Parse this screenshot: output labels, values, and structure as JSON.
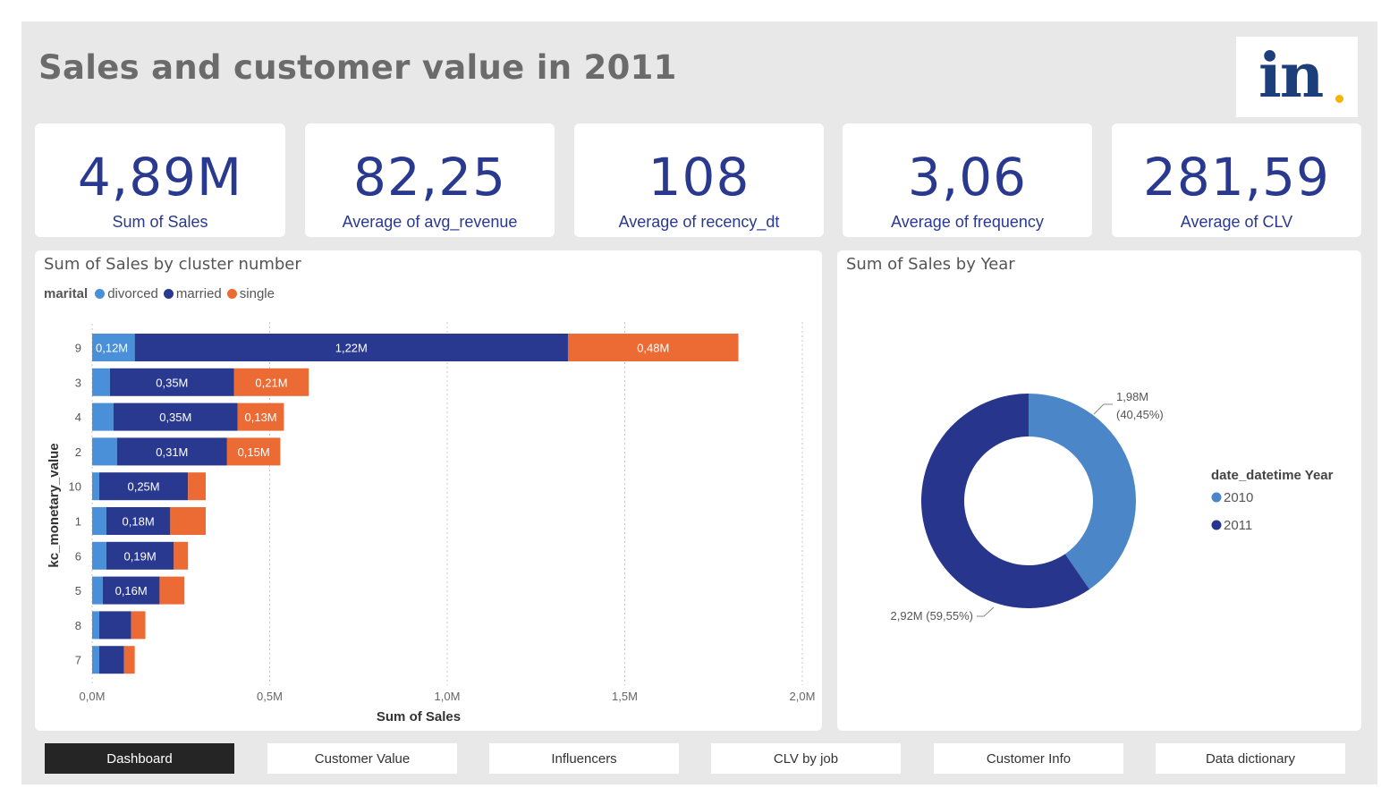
{
  "page_title": "Sales and customer value in 2011",
  "logo": {
    "text": "in"
  },
  "kpis": [
    {
      "value": "4,89M",
      "label": "Sum of Sales"
    },
    {
      "value": "82,25",
      "label": "Average of avg_revenue"
    },
    {
      "value": "108",
      "label": "Average of recency_dt"
    },
    {
      "value": "3,06",
      "label": "Average of frequency"
    },
    {
      "value": "281,59",
      "label": "Average of CLV"
    }
  ],
  "nav": {
    "dashboard": "Dashboard",
    "customer_value": "Customer Value",
    "influencers": "Influencers",
    "clv_by_job": "CLV by job",
    "customer_info": "Customer Info",
    "data_dictionary": "Data dictionary"
  },
  "colors": {
    "divorced": "#4a90d9",
    "married": "#2a3990",
    "single": "#ec6b35",
    "y2010": "#4a86c8",
    "y2011": "#27358c"
  },
  "chart_data": [
    {
      "type": "bar",
      "orientation": "horizontal",
      "stacked": true,
      "title": "Sum of Sales by cluster number",
      "legend_title": "marital",
      "legend_position": "top-left",
      "ylabel": "kc_monetary_value",
      "xlabel": "Sum of Sales",
      "categories": [
        "9",
        "3",
        "4",
        "2",
        "10",
        "1",
        "6",
        "5",
        "8",
        "7"
      ],
      "xlim": [
        0,
        2.0
      ],
      "xticks": [
        "0,0M",
        "0,5M",
        "1,0M",
        "1,5M",
        "2,0M"
      ],
      "series": [
        {
          "name": "divorced",
          "values": [
            0.12,
            0.05,
            0.06,
            0.07,
            0.02,
            0.04,
            0.04,
            0.03,
            0.02,
            0.02
          ],
          "labels": [
            "0,12M",
            "",
            "",
            "",
            "",
            "",
            "",
            "",
            "",
            ""
          ]
        },
        {
          "name": "married",
          "values": [
            1.22,
            0.35,
            0.35,
            0.31,
            0.25,
            0.18,
            0.19,
            0.16,
            0.09,
            0.07
          ],
          "labels": [
            "1,22M",
            "0,35M",
            "0,35M",
            "0,31M",
            "0,25M",
            "0,18M",
            "0,19M",
            "0,16M",
            "",
            ""
          ]
        },
        {
          "name": "single",
          "values": [
            0.48,
            0.21,
            0.13,
            0.15,
            0.05,
            0.1,
            0.04,
            0.07,
            0.04,
            0.03
          ],
          "labels": [
            "0,48M",
            "0,21M",
            "0,13M",
            "0,15M",
            "",
            "",
            "",
            "",
            "",
            ""
          ]
        }
      ]
    },
    {
      "type": "pie",
      "donut": true,
      "title": "Sum of Sales by Year",
      "legend_title": "date_datetime Year",
      "legend_position": "right",
      "slices": [
        {
          "name": "2010",
          "value": 1.98,
          "percent": 40.45,
          "label": "1,98M",
          "pct_label": "(40,45%)"
        },
        {
          "name": "2011",
          "value": 2.92,
          "percent": 59.55,
          "label": "2,92M (59,55%)"
        }
      ]
    }
  ]
}
